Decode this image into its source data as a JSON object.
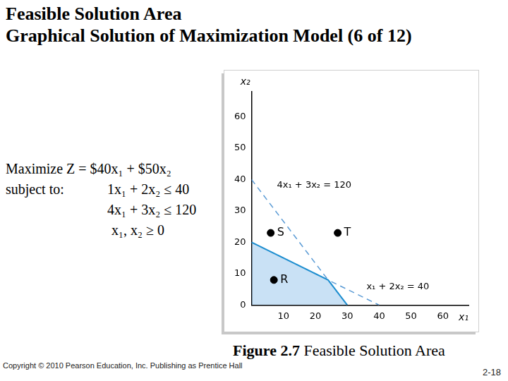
{
  "slide": {
    "title": [
      "Feasible Solution Area",
      "Graphical Solution of Maximization Model (6 of 12)"
    ],
    "model": {
      "objective": "Maximize Z = $40x₁ + $50x₂",
      "subject_to": "subject to:",
      "constraints": [
        "1x₁ + 2x₂ ≤ 40",
        "4x₁ + 3x₂ ≤ 120",
        "x₁, x₂ ≥ 0"
      ]
    },
    "caption": {
      "label": "Figure 2.7",
      "text": "Feasible Solution Area"
    },
    "copyright": "Copyright © 2010 Pearson Education, Inc. Publishing as Prentice Hall",
    "page": "2-18"
  },
  "chart_data": {
    "type": "scatter",
    "x_label": "x₁",
    "y_label": "x₂",
    "xlim": [
      0,
      68
    ],
    "ylim": [
      0,
      68
    ],
    "xticks": [
      10,
      20,
      30,
      40,
      50,
      60
    ],
    "yticks": [
      0,
      10,
      20,
      30,
      40,
      50,
      60
    ],
    "grid": false,
    "series": [
      {
        "name": "4x₁ + 3x₂ = 120",
        "type": "line",
        "line_style": "dashed",
        "color": "#5b9bd5",
        "x": [
          0,
          30
        ],
        "values": [
          40,
          0
        ]
      },
      {
        "name": "x₁ + 2x₂ = 40",
        "type": "line",
        "line_style": "dashed",
        "color": "#5b9bd5",
        "x": [
          0,
          40
        ],
        "values": [
          20,
          0
        ]
      },
      {
        "type": "area",
        "color": "#1f8fd0",
        "x": [
          0,
          24,
          30
        ],
        "values": [
          20,
          8,
          0
        ]
      },
      {
        "name": "S",
        "type": "scatter",
        "marker": "circle",
        "color": "#000000",
        "x": [
          6
        ],
        "values": [
          23
        ]
      },
      {
        "name": "T",
        "type": "scatter",
        "marker": "circle",
        "color": "#000000",
        "x": [
          27
        ],
        "values": [
          23
        ]
      },
      {
        "name": "R",
        "type": "scatter",
        "marker": "circle",
        "color": "#000000",
        "x": [
          7
        ],
        "values": [
          8
        ]
      }
    ]
  }
}
